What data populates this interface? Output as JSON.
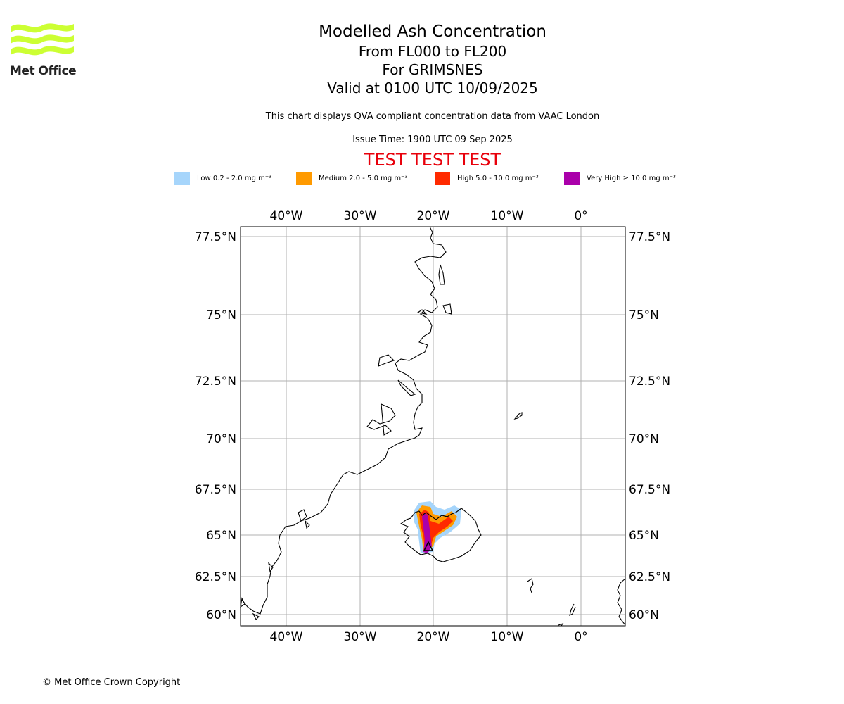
{
  "logo": {
    "text": "Met Office",
    "color": "#ccff33"
  },
  "title": {
    "line1": "Modelled Ash Concentration",
    "line2": "From FL000 to FL200",
    "line3": "For GRIMSNES",
    "line4": "Valid at 0100 UTC 10/09/2025"
  },
  "subtitle": "This chart displays QVA compliant concentration data from VAAC London",
  "issue_time": "Issue Time: 1900 UTC 09 Sep 2025",
  "test_banner": "TEST TEST TEST",
  "legend": [
    {
      "label": "Low 0.2 - 2.0 mg m⁻³",
      "color": "#a6d5fb"
    },
    {
      "label": "Medium 2.0 - 5.0 mg m⁻³",
      "color": "#ff9a00"
    },
    {
      "label": "High 5.0 - 10.0 mg m⁻³",
      "color": "#ff2a00"
    },
    {
      "label": "Very High ≥ 10.0 mg m⁻³",
      "color": "#aa00aa"
    }
  ],
  "map": {
    "lon_labels": [
      "40°W",
      "30°W",
      "20°W",
      "10°W",
      "0°"
    ],
    "lat_labels": [
      "77.5°N",
      "75°N",
      "72.5°N",
      "70°N",
      "67.5°N",
      "65°N",
      "62.5°N",
      "60°N"
    ],
    "extent": {
      "lon": [
        -46.2,
        6.2
      ],
      "lat": [
        59.6,
        77.9
      ]
    },
    "grid": true
  },
  "copyright": "© Met Office Crown Copyright"
}
